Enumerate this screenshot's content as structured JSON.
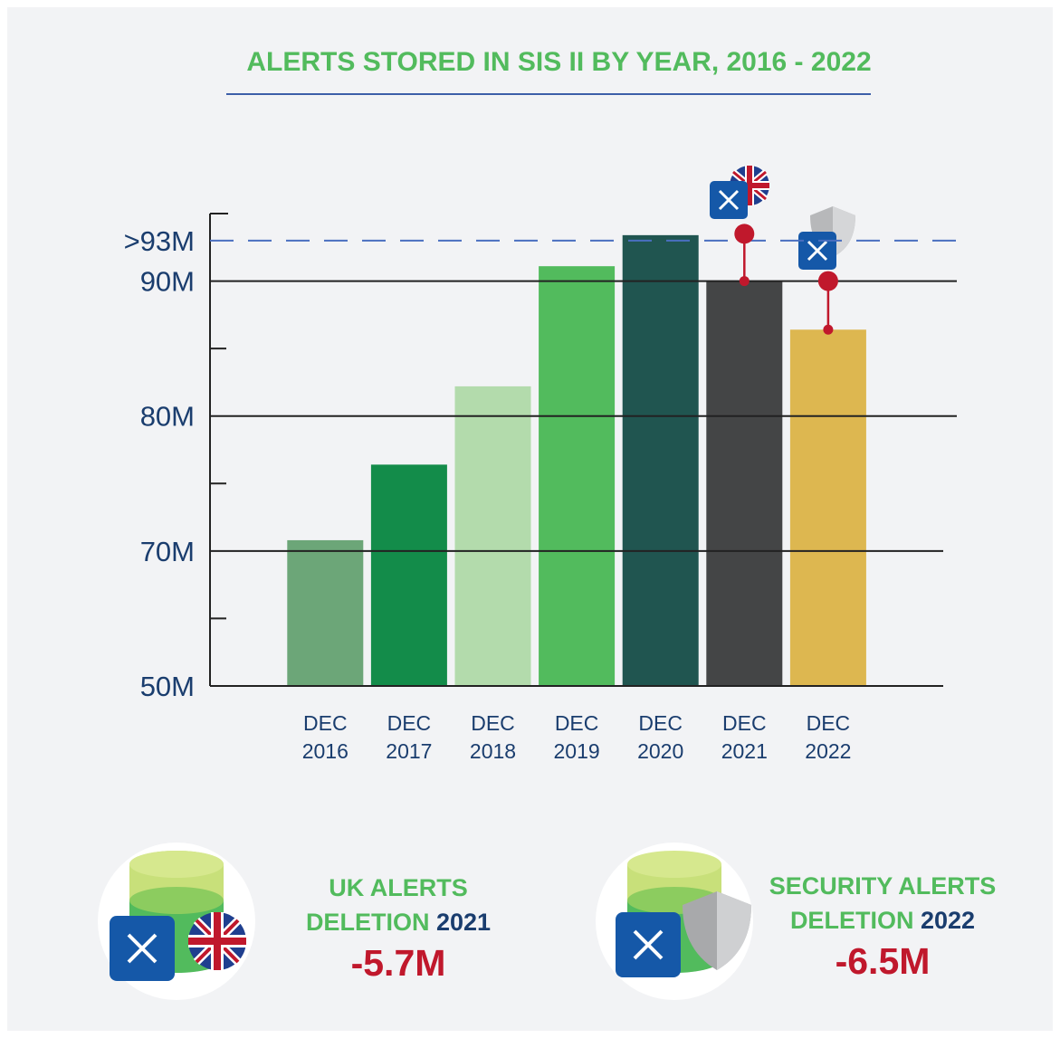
{
  "chart_data": {
    "type": "bar",
    "title": "ALERTS STORED IN SIS II BY YEAR, 2016 - 2022",
    "categories": [
      "DEC 2016",
      "DEC 2017",
      "DEC 2018",
      "DEC 2019",
      "DEC 2020",
      "DEC 2021",
      "DEC 2022"
    ],
    "values": [
      70.8,
      76.4,
      82.2,
      91.1,
      93.4,
      90.0,
      86.4
    ],
    "colors": [
      "#6ca678",
      "#138c4a",
      "#b3dbac",
      "#52bb5d",
      "#205550",
      "#444546",
      "#ddb750"
    ],
    "ylim": [
      50,
      95
    ],
    "ybreak": [
      50,
      70
    ],
    "yticks": [
      {
        "value": 50,
        "label": "50M"
      },
      {
        "value": 70,
        "label": "70M"
      },
      {
        "value": 80,
        "label": "80M"
      },
      {
        "value": 90,
        "label": "90M"
      },
      {
        "value": 93,
        "label": ">93M"
      }
    ],
    "yminor": [
      60,
      75,
      85
    ],
    "grid": true,
    "dashed_top_tick": true,
    "deletion_markers": [
      null,
      null,
      null,
      null,
      null,
      {
        "from": 93.5,
        "to": 90.0
      },
      {
        "from": 90.0,
        "to": 86.4
      }
    ],
    "marker_color": "#c0182c"
  },
  "callouts": [
    {
      "title": [
        "UK ALERTS",
        "DELETION"
      ],
      "year": "2021",
      "value": "-5.7M"
    },
    {
      "title": [
        "SECURITY ALERTS",
        "DELETION"
      ],
      "year": "2022",
      "value": "-6.5M"
    }
  ]
}
